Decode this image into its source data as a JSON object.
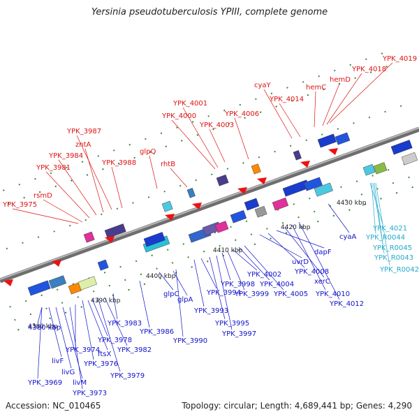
{
  "title": "Yersinia pseudotuberculosis YPIII, complete genome",
  "footer": {
    "accession": "Accession: NC_010465",
    "summary": "Topology: circular; Length: 4,689,441 bp; Genes: 4,290"
  },
  "colors": {
    "backbone": "#8a8a8a",
    "forward_label": "#dd1111",
    "reverse_label": "#1111cc",
    "rna_label": "#22aacc"
  },
  "ticks": [
    "4380 kbp",
    "4390 kbp",
    "4400 kbp",
    "4410 kbp",
    "4420 kbp",
    "4430 kbp"
  ],
  "forward_labels": [
    "YPK_3975",
    "rsmD",
    "YPK_3981",
    "YPK_3984",
    "zntA",
    "YPK_3987",
    "YPK_3988",
    "glpQ",
    "rhtB",
    "YPK_4000",
    "YPK_4001",
    "YPK_4003",
    "YPK_4006",
    "cyaY",
    "YPK_4014",
    "hemC",
    "hemD",
    "YPK_4018",
    "YPK_4019"
  ],
  "reverse_labels": [
    "4380 kbp",
    "YPK_3969",
    "livF",
    "livG",
    "livM",
    "YPK_3973",
    "YPK_3974",
    "YPK_3976",
    "ftsX",
    "YPK_3978",
    "YPK_3979",
    "YPK_3982",
    "YPK_3983",
    "YPK_3986",
    "glpC",
    "glpA",
    "YPK_3990",
    "YPK_3993",
    "YPK_3994",
    "YPK_3995",
    "YPK_3997",
    "YPK_3998",
    "YPK_3999",
    "YPK_4002",
    "YPK_4004",
    "YPK_4005",
    "uvrD",
    "YPK_4008",
    "dapF",
    "xerC",
    "YPK_4010",
    "YPK_4012",
    "cyaA"
  ],
  "rna_labels": [
    "YPK_4021",
    "YPK_R0044",
    "YPK_R0045",
    "YPK_R0043",
    "YPK_R0042"
  ]
}
